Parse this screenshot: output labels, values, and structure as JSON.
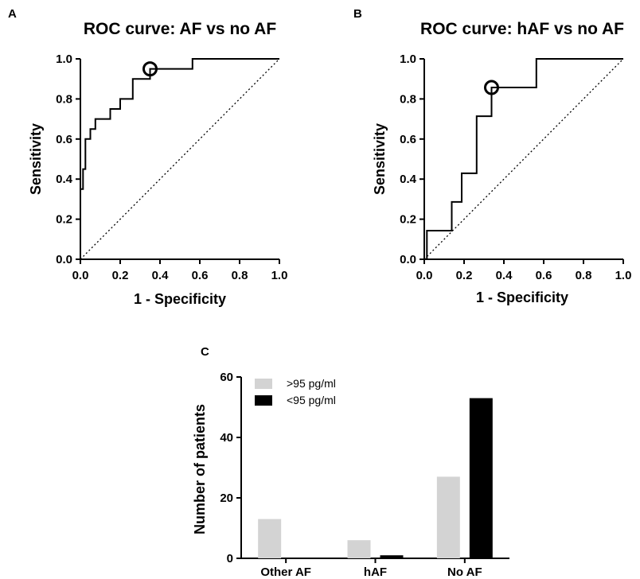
{
  "chart_data": [
    {
      "panel": "A",
      "type": "line",
      "title": "ROC curve: AF vs no AF",
      "xlabel": "1 - Specificity",
      "ylabel": "Sensitivity",
      "xlim": [
        0,
        1
      ],
      "ylim": [
        0,
        1
      ],
      "xticks": [
        "0.0",
        "0.2",
        "0.4",
        "0.6",
        "0.8",
        "1.0"
      ],
      "yticks": [
        "0.0",
        "0.2",
        "0.4",
        "0.6",
        "0.8",
        "1.0"
      ],
      "series": [
        {
          "name": "ROC",
          "style": "solid-step",
          "x": [
            0,
            0,
            0.013,
            0.013,
            0.025,
            0.025,
            0.05,
            0.05,
            0.075,
            0.075,
            0.1,
            0.1,
            0.15,
            0.15,
            0.2,
            0.2,
            0.263,
            0.263,
            0.325,
            0.325,
            0.35,
            0.35,
            0.563,
            0.563,
            1.0
          ],
          "y": [
            0,
            0.35,
            0.35,
            0.45,
            0.45,
            0.6,
            0.6,
            0.65,
            0.65,
            0.7,
            0.7,
            0.7,
            0.7,
            0.75,
            0.75,
            0.8,
            0.8,
            0.9,
            0.9,
            0.9,
            0.9,
            0.95,
            0.95,
            1.0,
            1.0
          ]
        },
        {
          "name": "Reference",
          "style": "dotted",
          "x": [
            0,
            1
          ],
          "y": [
            0,
            1
          ]
        }
      ],
      "highlight_point": {
        "x": 0.35,
        "y": 0.95,
        "marker": "open-circle"
      }
    },
    {
      "panel": "B",
      "type": "line",
      "title": "ROC curve: hAF vs no AF",
      "xlabel": "1 - Specificity",
      "ylabel": "Sensitivity",
      "xlim": [
        0,
        1
      ],
      "ylim": [
        0,
        1
      ],
      "xticks": [
        "0.0",
        "0.2",
        "0.4",
        "0.6",
        "0.8",
        "1.0"
      ],
      "yticks": [
        "0.0",
        "0.2",
        "0.4",
        "0.6",
        "0.8",
        "1.0"
      ],
      "series": [
        {
          "name": "ROC",
          "style": "solid-step",
          "x": [
            0,
            0,
            0.013,
            0.013,
            0.138,
            0.138,
            0.188,
            0.188,
            0.263,
            0.263,
            0.338,
            0.338,
            0.563,
            0.563,
            1.0
          ],
          "y": [
            0,
            0.0,
            0.0,
            0.143,
            0.143,
            0.286,
            0.286,
            0.429,
            0.429,
            0.714,
            0.714,
            0.857,
            0.857,
            1.0,
            1.0
          ]
        },
        {
          "name": "Reference",
          "style": "dotted",
          "x": [
            0,
            1
          ],
          "y": [
            0,
            1
          ]
        }
      ],
      "highlight_point": {
        "x": 0.338,
        "y": 0.857,
        "marker": "open-circle"
      }
    },
    {
      "panel": "C",
      "type": "bar",
      "ylabel": "Number of patients",
      "ylim": [
        0,
        60
      ],
      "yticks": [
        "0",
        "20",
        "40",
        "60"
      ],
      "categories": [
        "Other AF",
        "hAF",
        "No AF"
      ],
      "series": [
        {
          "name": ">95 pg/ml",
          "color": "#d3d3d3",
          "values": [
            13,
            6,
            27
          ]
        },
        {
          "name": "<95 pg/ml",
          "color": "#000000",
          "values": [
            0,
            1,
            53
          ]
        }
      ],
      "legend_position": "top-left"
    }
  ]
}
